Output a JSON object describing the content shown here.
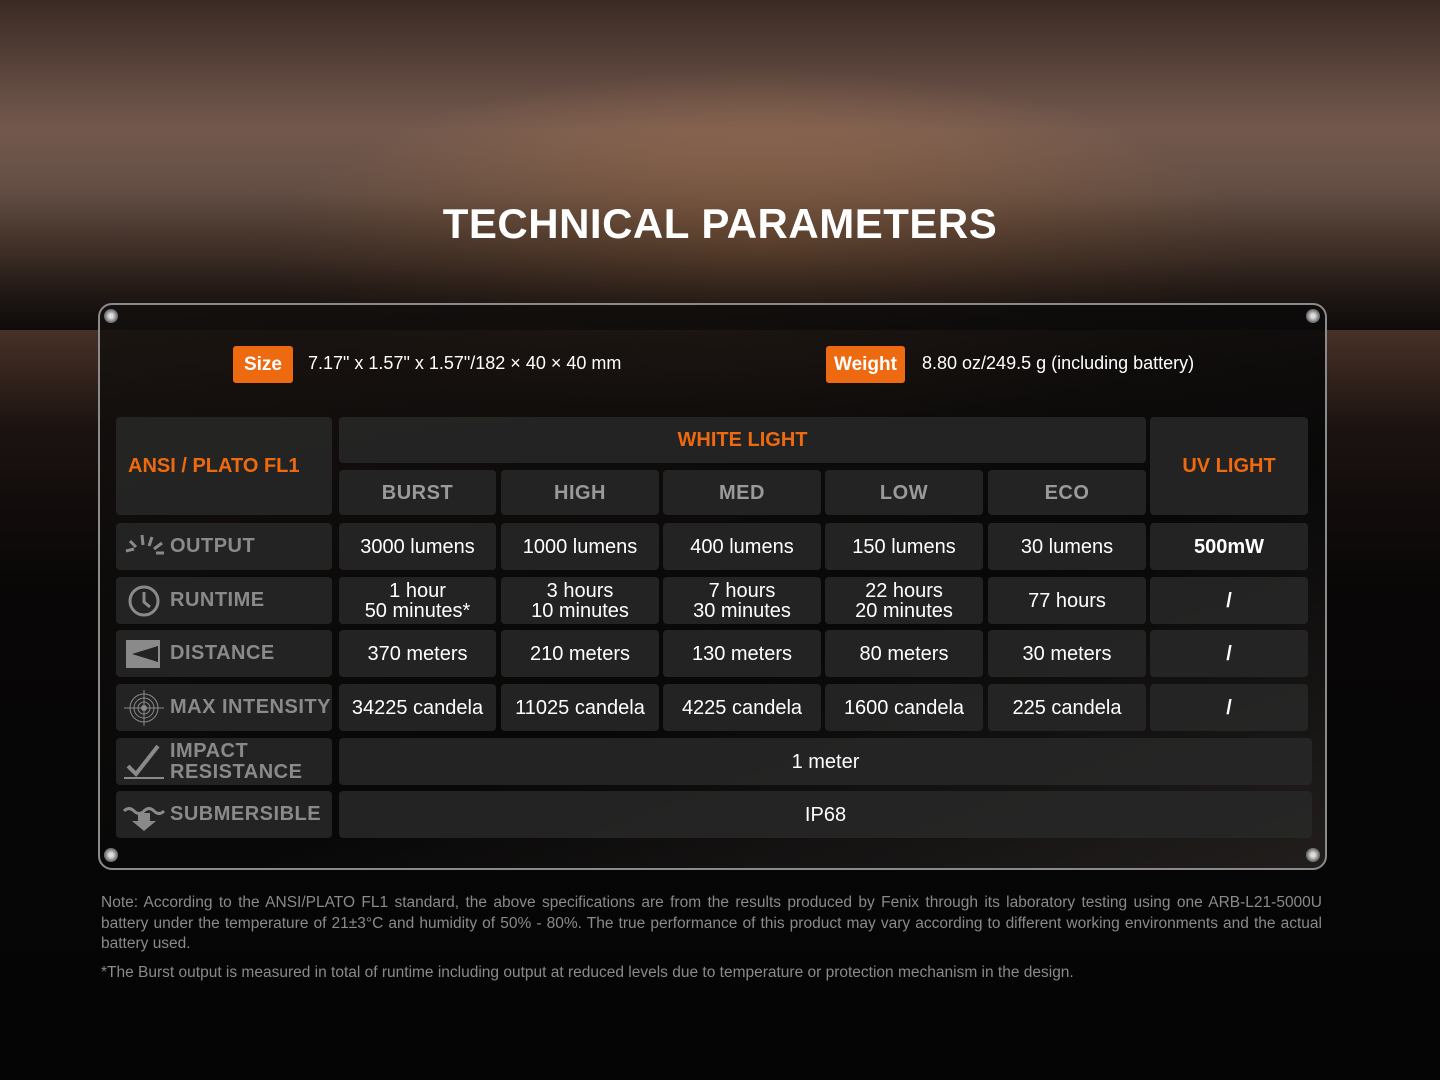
{
  "title": "TECHNICAL PARAMETERS",
  "size": {
    "label": "Size",
    "value": "7.17\" x 1.57\" x 1.57\"/182 × 40 × 40 mm"
  },
  "weight": {
    "label": "Weight",
    "value": "8.80 oz/249.5 g (including battery)"
  },
  "accent_color": "#ee6a10",
  "table": {
    "corner": "ANSI / PLATO FL1",
    "white_light": "WHITE LIGHT",
    "uv_light": "UV LIGHT",
    "modes": [
      "BURST",
      "HIGH",
      "MED",
      "LOW",
      "ECO"
    ],
    "rows": [
      {
        "label": "OUTPUT",
        "icon": "sun-rays-icon",
        "values": [
          "3000 lumens",
          "1000 lumens",
          "400 lumens",
          "150 lumens",
          "30 lumens"
        ],
        "uv": "500mW"
      },
      {
        "label": "RUNTIME",
        "icon": "clock-icon",
        "values": [
          "1 hour\n50 minutes*",
          "3 hours\n10 minutes",
          "7 hours\n30 minutes",
          "22 hours\n20 minutes",
          "77 hours"
        ],
        "uv": "/"
      },
      {
        "label": "DISTANCE",
        "icon": "beam-distance-icon",
        "values": [
          "370 meters",
          "210 meters",
          "130 meters",
          "80 meters",
          "30 meters"
        ],
        "uv": "/"
      },
      {
        "label": "MAX INTENSITY",
        "icon": "target-icon",
        "values": [
          "34225 candela",
          "11025 candela",
          "4225 candela",
          "1600 candela",
          "225 candela"
        ],
        "uv": "/"
      },
      {
        "label": "IMPACT\nRESISTANCE",
        "icon": "impact-check-icon",
        "span": "1 meter"
      },
      {
        "label": "SUBMERSIBLE",
        "icon": "water-arrow-icon",
        "span": "IP68"
      }
    ]
  },
  "notes": [
    "Note: According to the ANSI/PLATO FL1 standard, the above specifications are from the results produced by Fenix through its laboratory testing using one ARB-L21-5000U battery under the temperature of 21±3°C and humidity of 50% - 80%. The true performance of this product may vary according to different working environments and the actual battery used.",
    "*The Burst output is measured in total of runtime including output at reduced levels due to temperature or protection mechanism in the design."
  ]
}
